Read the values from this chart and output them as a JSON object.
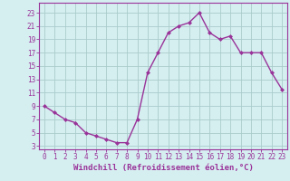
{
  "x": [
    0,
    1,
    2,
    3,
    4,
    5,
    6,
    7,
    8,
    9,
    10,
    11,
    12,
    13,
    14,
    15,
    16,
    17,
    18,
    19,
    20,
    21,
    22,
    23
  ],
  "y": [
    9,
    8,
    7,
    6.5,
    5,
    4.5,
    4,
    3.5,
    3.5,
    7,
    14,
    17,
    20,
    21,
    21.5,
    23,
    20,
    19,
    19.5,
    17,
    17,
    17,
    14,
    11.5
  ],
  "line_color": "#993399",
  "marker": "D",
  "marker_size": 2,
  "background_color": "#d5eef0",
  "grid_color": "#aacccc",
  "xlabel": "Windchill (Refroidissement éolien,°C)",
  "xlim": [
    -0.5,
    23.5
  ],
  "ylim": [
    2.5,
    24.5
  ],
  "yticks": [
    3,
    5,
    7,
    9,
    11,
    13,
    15,
    17,
    19,
    21,
    23
  ],
  "xticks": [
    0,
    1,
    2,
    3,
    4,
    5,
    6,
    7,
    8,
    9,
    10,
    11,
    12,
    13,
    14,
    15,
    16,
    17,
    18,
    19,
    20,
    21,
    22,
    23
  ],
  "tick_fontsize": 5.5,
  "xlabel_fontsize": 6.5,
  "line_width": 1.0
}
